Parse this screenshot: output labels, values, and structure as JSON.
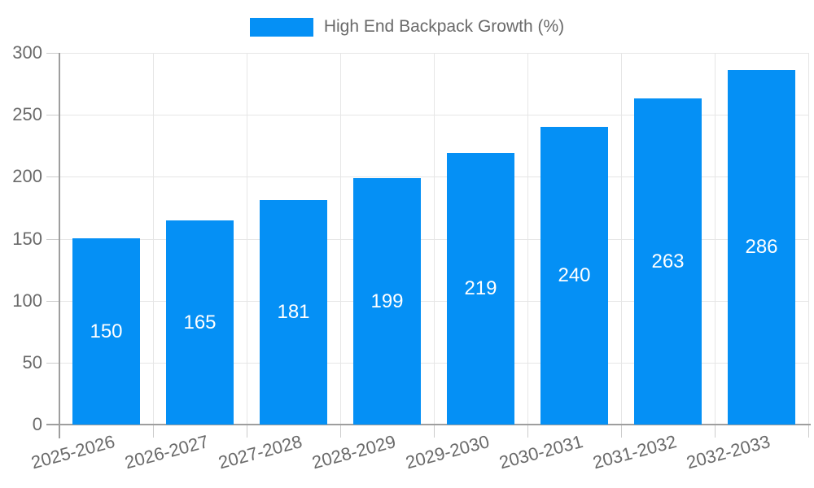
{
  "chart_data": {
    "type": "bar",
    "title": "High End Backpack Growth (%)",
    "categories": [
      "2025-2026",
      "2026-2027",
      "2027-2028",
      "2028-2029",
      "2029-2030",
      "2030-2031",
      "2031-2032",
      "2032-2033"
    ],
    "values": [
      150,
      165,
      181,
      199,
      219,
      240,
      263,
      286
    ],
    "value_labels": [
      "150",
      "165",
      "181",
      "199",
      "219",
      "240",
      "263",
      "286"
    ],
    "series": [
      {
        "name": "High End Backpack Growth (%)",
        "values": [
          150,
          165,
          181,
          199,
          219,
          240,
          263,
          286
        ]
      }
    ],
    "xlabel": "",
    "ylabel": "",
    "ylim": [
      0,
      300
    ],
    "yticks": [
      0,
      50,
      100,
      150,
      200,
      250,
      300
    ],
    "grid": true,
    "legend_position": "top-center",
    "x_tick_rotation_deg": -15
  },
  "legend": {
    "label": "High End Backpack Growth (%)"
  },
  "colors": {
    "bar": "#0590f5",
    "value_label": "#ffffff",
    "axis": "#9e9e9e",
    "gridline": "#e6e6e6",
    "tick": "#cccccc",
    "text": "#6a6a6a",
    "background": "#ffffff"
  }
}
